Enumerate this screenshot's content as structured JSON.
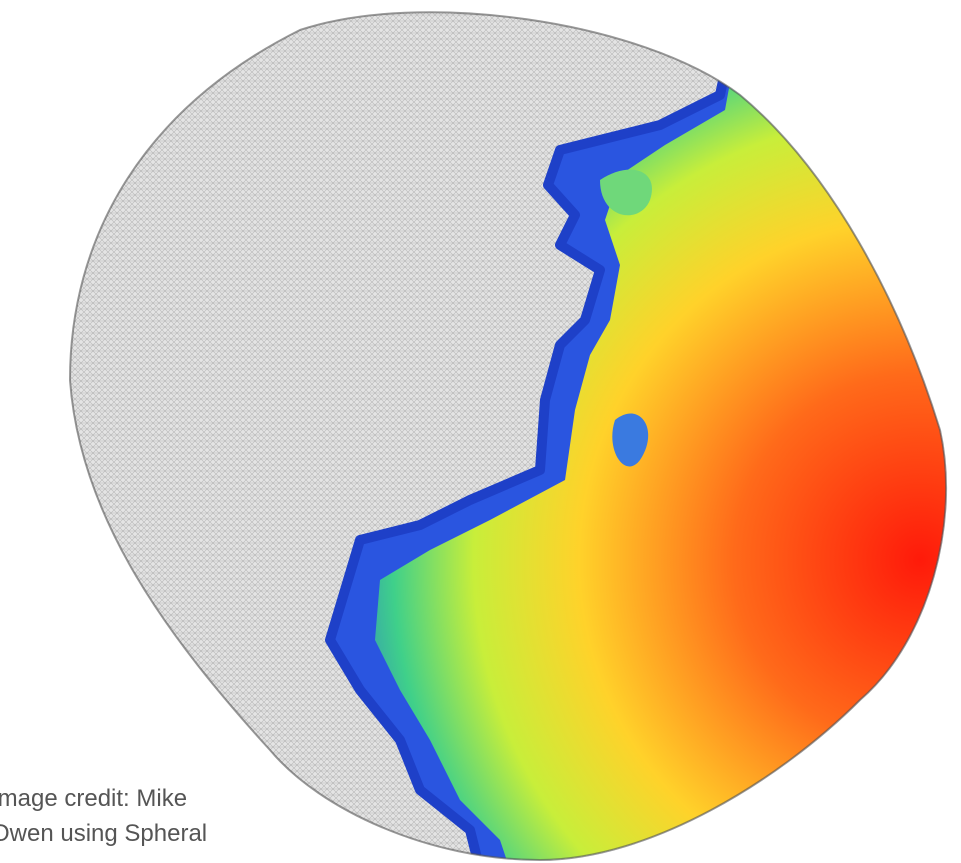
{
  "caption": {
    "lines": [
      "Image credit: Mike",
      "Owen using Spheral"
    ]
  }
}
